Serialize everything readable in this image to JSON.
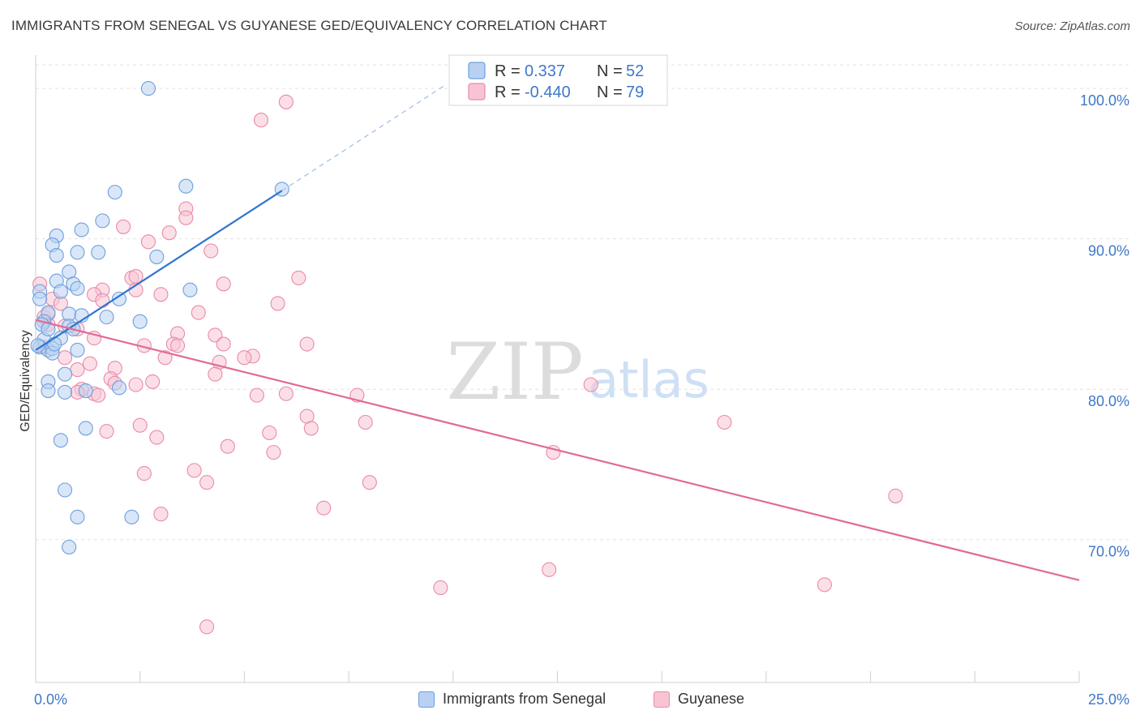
{
  "header": {
    "title": "IMMIGRANTS FROM SENEGAL VS GUYANESE GED/EQUIVALENCY CORRELATION CHART",
    "source": "Source: ZipAtlas.com"
  },
  "colors": {
    "blue_fill": "#b8d1f3",
    "blue_stroke": "#6e9fdc",
    "blue_line": "#2f74d0",
    "pink_fill": "#f8c4d4",
    "pink_stroke": "#e98aa8",
    "pink_line": "#e06a97",
    "tick_label": "#3e78c8",
    "grid": "#e3e3e3",
    "watermark": "#dcdcdc"
  },
  "watermark": {
    "zip": "ZIP",
    "atlas": "atlas"
  },
  "legend_box": {
    "rows": [
      {
        "r_label": "R = ",
        "r_value": " 0.337",
        "n_label": "N = ",
        "n_value": "52"
      },
      {
        "r_label": "R = ",
        "r_value": "-0.440",
        "n_label": "N = ",
        "n_value": "79"
      }
    ]
  },
  "chart_data": {
    "type": "scatter",
    "title": "IMMIGRANTS FROM SENEGAL VS GUYANESE GED/EQUIVALENCY CORRELATION CHART",
    "xlabel": "",
    "ylabel": "GED/Equivalency",
    "xlim": [
      0,
      25
    ],
    "ylim": [
      60.5,
      102
    ],
    "x_tick_labels": [
      "0.0%",
      "25.0%"
    ],
    "y_ticks": [
      70,
      80,
      90,
      100
    ],
    "y_tick_labels": [
      "70.0%",
      "80.0%",
      "90.0%",
      "100.0%"
    ],
    "grid": true,
    "legend_position": "bottom",
    "series": [
      {
        "name": "Immigrants from Senegal",
        "r": 0.337,
        "n": 52,
        "trend": {
          "x0": 0.0,
          "y0": 82.6,
          "x1": 5.9,
          "y1": 93.2,
          "dashed_to_x": 9.8,
          "dashed_to_y": 100.2
        },
        "points": [
          [
            2.7,
            100.0
          ],
          [
            3.6,
            93.5
          ],
          [
            1.9,
            93.1
          ],
          [
            5.9,
            93.3
          ],
          [
            1.6,
            91.2
          ],
          [
            1.1,
            90.6
          ],
          [
            0.5,
            90.2
          ],
          [
            0.4,
            89.6
          ],
          [
            0.5,
            88.9
          ],
          [
            1.0,
            89.1
          ],
          [
            1.5,
            89.1
          ],
          [
            2.9,
            88.8
          ],
          [
            0.8,
            87.8
          ],
          [
            0.5,
            87.2
          ],
          [
            0.9,
            87.0
          ],
          [
            1.0,
            86.7
          ],
          [
            0.6,
            86.5
          ],
          [
            0.1,
            86.5
          ],
          [
            0.1,
            86.0
          ],
          [
            2.0,
            86.0
          ],
          [
            3.7,
            86.6
          ],
          [
            0.3,
            85.1
          ],
          [
            0.8,
            85.0
          ],
          [
            1.1,
            84.9
          ],
          [
            1.7,
            84.8
          ],
          [
            2.5,
            84.5
          ],
          [
            0.2,
            84.5
          ],
          [
            0.8,
            84.2
          ],
          [
            0.2,
            83.3
          ],
          [
            0.6,
            83.4
          ],
          [
            0.1,
            82.8
          ],
          [
            0.3,
            82.6
          ],
          [
            0.4,
            82.7
          ],
          [
            1.0,
            82.6
          ],
          [
            0.7,
            81.0
          ],
          [
            0.3,
            80.5
          ],
          [
            0.3,
            79.9
          ],
          [
            1.2,
            79.9
          ],
          [
            2.0,
            80.1
          ],
          [
            0.7,
            79.8
          ],
          [
            1.2,
            77.4
          ],
          [
            0.6,
            76.6
          ],
          [
            0.7,
            73.3
          ],
          [
            1.0,
            71.5
          ],
          [
            2.3,
            71.5
          ],
          [
            0.8,
            69.5
          ],
          [
            0.05,
            82.9
          ],
          [
            0.15,
            84.3
          ],
          [
            0.3,
            84.0
          ],
          [
            0.4,
            82.4
          ],
          [
            0.9,
            84.0
          ],
          [
            0.45,
            83.0
          ]
        ]
      },
      {
        "name": "Guyanese",
        "r": -0.44,
        "n": 79,
        "trend": {
          "x0": 0.0,
          "y0": 84.6,
          "x1": 25.0,
          "y1": 67.3
        },
        "points": [
          [
            6.0,
            99.1
          ],
          [
            5.4,
            97.9
          ],
          [
            3.6,
            92.0
          ],
          [
            3.6,
            91.4
          ],
          [
            2.1,
            90.8
          ],
          [
            3.2,
            90.4
          ],
          [
            2.7,
            89.8
          ],
          [
            4.2,
            89.2
          ],
          [
            2.3,
            87.4
          ],
          [
            2.4,
            87.5
          ],
          [
            6.3,
            87.4
          ],
          [
            4.5,
            87.0
          ],
          [
            1.6,
            86.6
          ],
          [
            2.4,
            86.6
          ],
          [
            3.0,
            86.3
          ],
          [
            1.4,
            86.3
          ],
          [
            0.1,
            87.0
          ],
          [
            0.4,
            86.0
          ],
          [
            1.6,
            85.9
          ],
          [
            0.6,
            85.7
          ],
          [
            5.8,
            85.7
          ],
          [
            3.9,
            85.1
          ],
          [
            0.2,
            84.8
          ],
          [
            0.3,
            84.3
          ],
          [
            0.7,
            84.2
          ],
          [
            1.0,
            84.0
          ],
          [
            3.4,
            83.7
          ],
          [
            4.3,
            83.6
          ],
          [
            1.4,
            83.4
          ],
          [
            3.3,
            83.0
          ],
          [
            2.6,
            82.9
          ],
          [
            4.5,
            83.0
          ],
          [
            6.5,
            83.0
          ],
          [
            3.4,
            82.9
          ],
          [
            5.2,
            82.2
          ],
          [
            5.0,
            82.1
          ],
          [
            0.7,
            82.1
          ],
          [
            3.1,
            82.1
          ],
          [
            4.4,
            81.8
          ],
          [
            1.3,
            81.7
          ],
          [
            1.9,
            81.4
          ],
          [
            1.0,
            81.3
          ],
          [
            4.3,
            81.0
          ],
          [
            1.8,
            80.7
          ],
          [
            1.9,
            80.4
          ],
          [
            2.8,
            80.5
          ],
          [
            2.4,
            80.3
          ],
          [
            1.1,
            80.0
          ],
          [
            1.0,
            79.8
          ],
          [
            1.4,
            79.7
          ],
          [
            5.3,
            79.6
          ],
          [
            6.0,
            79.7
          ],
          [
            7.7,
            79.6
          ],
          [
            1.5,
            79.6
          ],
          [
            6.5,
            78.2
          ],
          [
            7.9,
            77.8
          ],
          [
            2.5,
            77.6
          ],
          [
            6.6,
            77.4
          ],
          [
            1.7,
            77.2
          ],
          [
            5.6,
            77.1
          ],
          [
            2.9,
            76.8
          ],
          [
            4.6,
            76.2
          ],
          [
            12.4,
            75.8
          ],
          [
            5.7,
            75.8
          ],
          [
            3.8,
            74.6
          ],
          [
            2.6,
            74.4
          ],
          [
            8.0,
            73.8
          ],
          [
            4.1,
            73.8
          ],
          [
            20.6,
            72.9
          ],
          [
            6.9,
            72.1
          ],
          [
            3.0,
            71.7
          ],
          [
            16.5,
            77.8
          ],
          [
            13.3,
            80.3
          ],
          [
            12.3,
            68.0
          ],
          [
            9.7,
            66.8
          ],
          [
            18.9,
            67.0
          ],
          [
            4.1,
            64.2
          ],
          [
            0.3,
            85.0
          ],
          [
            0.2,
            82.8
          ]
        ]
      }
    ]
  },
  "bottom_legend": {
    "items": [
      {
        "label": "Immigrants from Senegal"
      },
      {
        "label": "Guyanese"
      }
    ]
  }
}
